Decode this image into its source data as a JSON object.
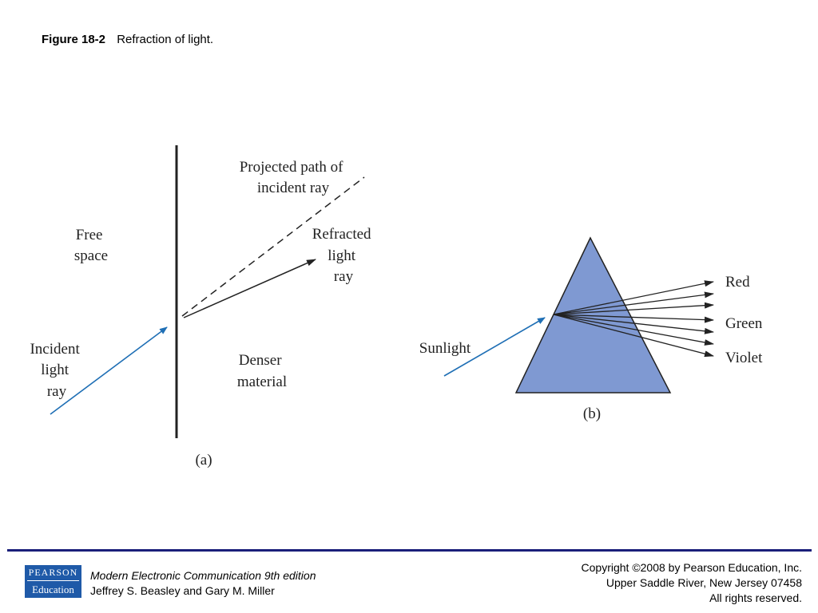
{
  "header": {
    "figure_number": "Figure 18-2",
    "caption": "Refraction of light."
  },
  "diagram_a": {
    "label_free_space": [
      "Free",
      "space"
    ],
    "label_projected": [
      "Projected path of",
      "incident ray"
    ],
    "label_refracted": [
      "Refracted",
      "light",
      "ray"
    ],
    "label_incident": [
      "Incident",
      "light",
      "ray"
    ],
    "label_denser": [
      "Denser",
      "material"
    ],
    "sublabel": "(a)"
  },
  "diagram_b": {
    "label_sunlight": "Sunlight",
    "label_red": "Red",
    "label_green": "Green",
    "label_violet": "Violet",
    "sublabel": "(b)",
    "prism_color": "#7f99d2",
    "ray_color": "#1f6fb5"
  },
  "footer": {
    "logo_top": "PEARSON",
    "logo_bottom": "Education",
    "book_title": "Modern Electronic Communication 9th edition",
    "authors": "Jeffrey S. Beasley and Gary M. Miller",
    "copyright_line1": "Copyright ©2008 by Pearson Education, Inc.",
    "copyright_line2": "Upper Saddle River, New Jersey 07458",
    "copyright_line3": "All rights reserved."
  }
}
